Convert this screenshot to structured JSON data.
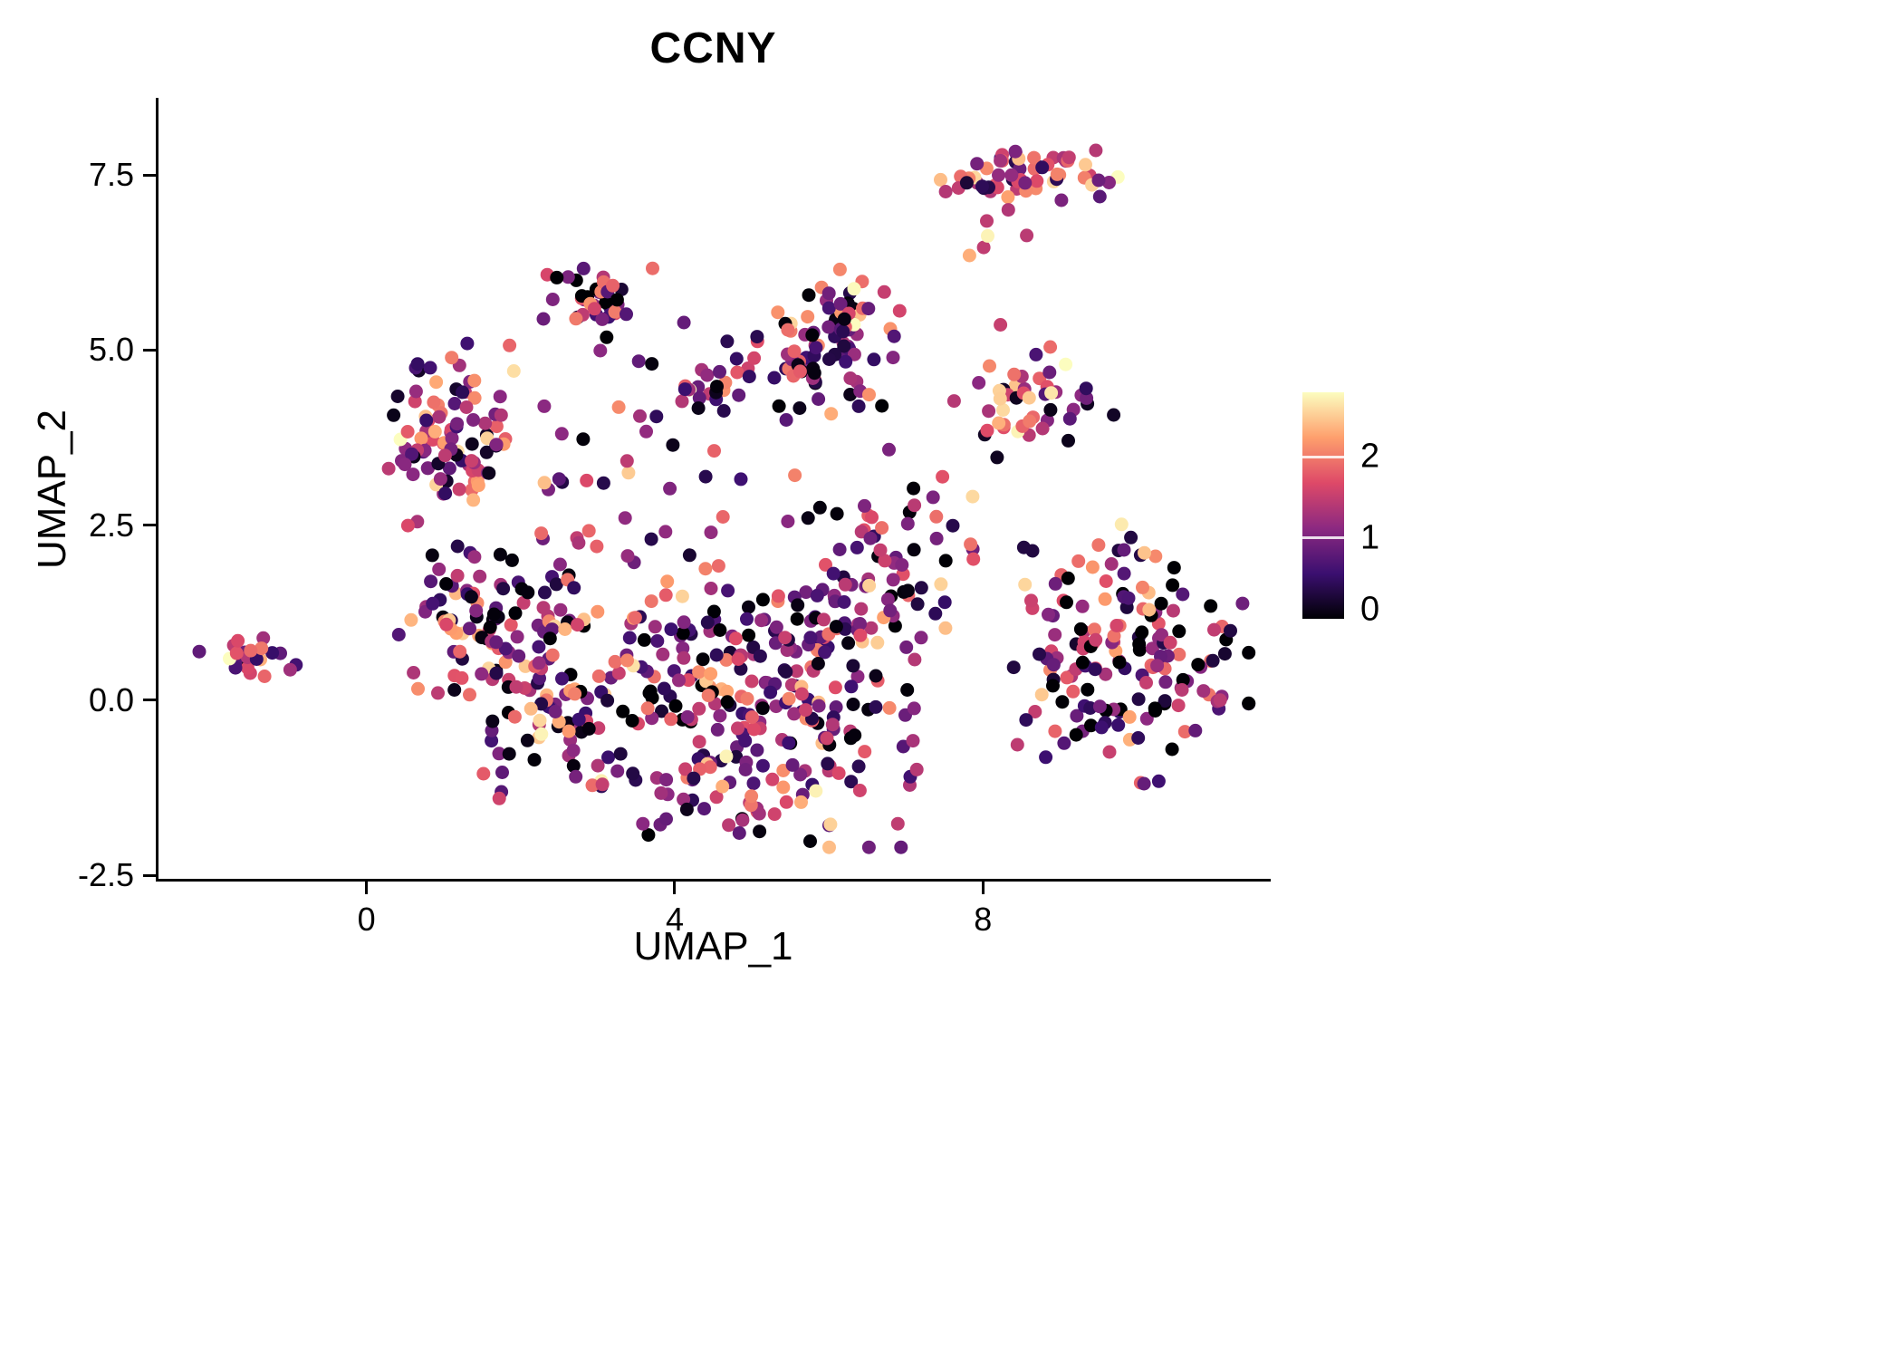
{
  "chart_data": {
    "type": "scatter",
    "title": "CCNY",
    "xlabel": "UMAP_1",
    "ylabel": "UMAP_2",
    "x_range": [
      -2.7,
      11.7
    ],
    "y_range": [
      -2.55,
      8.6
    ],
    "x_ticks": [
      {
        "value": 0,
        "label": "0"
      },
      {
        "value": 4,
        "label": "4"
      },
      {
        "value": 8,
        "label": "8"
      }
    ],
    "y_ticks": [
      {
        "value": -2.5,
        "label": "-2.5"
      },
      {
        "value": 0,
        "label": "0.0"
      },
      {
        "value": 2.5,
        "label": "2.5"
      },
      {
        "value": 5,
        "label": "5.0"
      },
      {
        "value": 7.5,
        "label": "7.5"
      }
    ],
    "grid": false,
    "background": "#ffffff",
    "legend_position": "right",
    "point_radius_px": 7.5,
    "seed": 42,
    "colormap": {
      "name": "magma",
      "stops": [
        "#000004",
        "#3b0f70",
        "#8c2981",
        "#de4968",
        "#fe9f6d",
        "#fcfdbf"
      ],
      "domain": [
        0,
        2.8
      ]
    },
    "colorbar": {
      "ticks": [
        {
          "value": 2,
          "label": "2"
        },
        {
          "value": 1,
          "label": "1"
        },
        {
          "value": 0,
          "label": "0"
        }
      ]
    },
    "value_distribution": [
      {
        "min": 0.0,
        "max": 0.12,
        "w": 0.18
      },
      {
        "min": 0.3,
        "max": 0.8,
        "w": 0.2
      },
      {
        "min": 0.8,
        "max": 1.3,
        "w": 0.24
      },
      {
        "min": 1.3,
        "max": 1.8,
        "w": 0.18
      },
      {
        "min": 1.8,
        "max": 2.3,
        "w": 0.14
      },
      {
        "min": 2.3,
        "max": 2.6,
        "w": 0.05
      },
      {
        "min": 2.6,
        "max": 2.85,
        "w": 0.01
      }
    ],
    "clusters": [
      {
        "name": "far-left-islet",
        "cx": -1.45,
        "cy": 0.62,
        "sx": 0.22,
        "sy": 0.13,
        "n": 22,
        "shift": 0
      },
      {
        "name": "top-right",
        "cx": 8.55,
        "cy": 7.5,
        "sx": 0.5,
        "sy": 0.22,
        "n": 60,
        "shift": 0.35
      },
      {
        "name": "top-right-stragglers",
        "cx": 8.0,
        "cy": 6.6,
        "sx": 0.35,
        "sy": 0.3,
        "n": 6,
        "shift": 0.2
      },
      {
        "name": "right-mid",
        "cx": 8.6,
        "cy": 4.3,
        "sx": 0.38,
        "sy": 0.38,
        "n": 48,
        "shift": 0.1
      },
      {
        "name": "far-right",
        "cx": 9.8,
        "cy": 0.55,
        "sx": 0.75,
        "sy": 0.8,
        "n": 165,
        "shift": -0.1
      },
      {
        "name": "top-mid",
        "cx": 2.9,
        "cy": 5.7,
        "sx": 0.3,
        "sy": 0.28,
        "n": 40,
        "shift": -0.15
      },
      {
        "name": "upper-mid",
        "cx": 6.0,
        "cy": 5.1,
        "sx": 0.42,
        "sy": 0.5,
        "n": 95,
        "shift": 0
      },
      {
        "name": "left-upper",
        "cx": 1.1,
        "cy": 3.8,
        "sx": 0.42,
        "sy": 0.55,
        "n": 95,
        "shift": 0.1
      },
      {
        "name": "left-lower",
        "cx": 1.3,
        "cy": 1.3,
        "sx": 0.45,
        "sy": 0.5,
        "n": 60,
        "shift": 0
      },
      {
        "name": "center-west",
        "cx": 2.3,
        "cy": 0.4,
        "sx": 0.55,
        "sy": 0.85,
        "n": 100,
        "shift": 0
      },
      {
        "name": "center",
        "cx": 4.1,
        "cy": 0.3,
        "sx": 0.8,
        "sy": 0.9,
        "n": 130,
        "shift": -0.1
      },
      {
        "name": "center-east",
        "cx": 5.6,
        "cy": 0.1,
        "sx": 0.75,
        "sy": 0.9,
        "n": 130,
        "shift": 0
      },
      {
        "name": "center-northeast",
        "cx": 6.6,
        "cy": 1.6,
        "sx": 0.5,
        "sy": 0.6,
        "n": 60,
        "shift": 0
      },
      {
        "name": "bottom-arc",
        "cx": 4.9,
        "cy": -1.35,
        "sx": 0.95,
        "sy": 0.3,
        "n": 45,
        "shift": 0
      },
      {
        "name": "mid-small",
        "cx": 4.4,
        "cy": 4.45,
        "sx": 0.2,
        "sy": 0.12,
        "n": 14,
        "shift": 0.1
      },
      {
        "name": "sparse-mid",
        "cx": 3.6,
        "cy": 3.1,
        "sx": 1.0,
        "sy": 0.75,
        "n": 35,
        "shift": 0
      },
      {
        "name": "east-bridge",
        "cx": 7.1,
        "cy": 2.9,
        "sx": 0.35,
        "sy": 0.5,
        "n": 14,
        "shift": 0
      },
      {
        "name": "north-bridge",
        "cx": 4.8,
        "cy": 4.5,
        "sx": 0.5,
        "sy": 0.3,
        "n": 10,
        "shift": 0
      }
    ]
  }
}
